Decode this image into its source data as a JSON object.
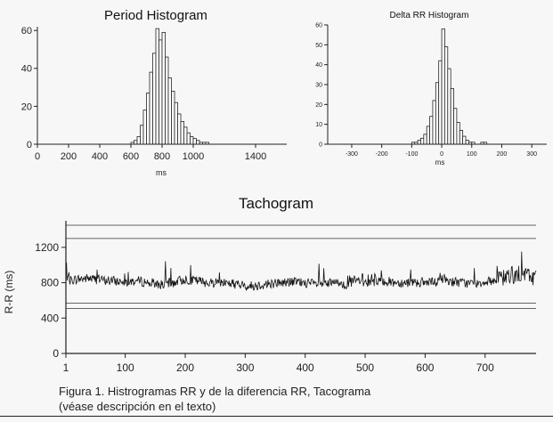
{
  "chart_data": [
    {
      "type": "bar",
      "title": "Period Histogram",
      "xlabel": "ms",
      "ylabel": "",
      "xlim": [
        0,
        1600
      ],
      "ylim": [
        0,
        62
      ],
      "xticks": [
        0,
        200,
        400,
        600,
        800,
        1000,
        1400
      ],
      "yticks": [
        0,
        20,
        40,
        60
      ],
      "bin_width": 20,
      "bins": [
        600,
        620,
        640,
        660,
        680,
        700,
        720,
        740,
        760,
        780,
        800,
        820,
        840,
        860,
        880,
        900,
        920,
        940,
        960,
        980,
        1000,
        1020,
        1040,
        1060,
        1080
      ],
      "values": [
        1,
        2,
        4,
        10,
        18,
        27,
        38,
        48,
        61,
        55,
        59,
        46,
        35,
        28,
        22,
        16,
        12,
        9,
        6,
        4,
        3,
        2,
        1,
        1,
        1
      ]
    },
    {
      "type": "bar",
      "title": "Delta RR Histogram",
      "xlabel": "ms",
      "ylabel": "",
      "xlim": [
        -380,
        350
      ],
      "ylim": [
        0,
        60
      ],
      "xticks": [
        -300,
        -200,
        -100,
        0,
        100,
        200,
        300
      ],
      "yticks": [
        0,
        10,
        20,
        30,
        40,
        50,
        60
      ],
      "bin_width": 10,
      "bins": [
        -110,
        -100,
        -90,
        -80,
        -70,
        -60,
        -50,
        -40,
        -30,
        -20,
        -10,
        0,
        10,
        20,
        30,
        40,
        50,
        60,
        70,
        80,
        90,
        100,
        110,
        120,
        130,
        140
      ],
      "values": [
        0,
        1,
        1,
        2,
        3,
        5,
        9,
        14,
        22,
        31,
        42,
        58,
        49,
        38,
        28,
        18,
        11,
        7,
        4,
        2,
        1,
        1,
        0,
        0,
        1,
        1
      ]
    },
    {
      "type": "line",
      "title": "Tachogram",
      "xlabel": "",
      "ylabel": "R-R (ms)",
      "xlim": [
        1,
        785
      ],
      "ylim": [
        0,
        1500
      ],
      "xticks": [
        1,
        100,
        200,
        300,
        400,
        500,
        600,
        700
      ],
      "yticks": [
        0,
        400,
        800,
        1200
      ],
      "reference_lines": [
        1450,
        1300,
        570,
        510
      ],
      "n_beats": 785,
      "x": [
        1,
        20,
        40,
        60,
        80,
        100,
        120,
        140,
        160,
        180,
        200,
        220,
        240,
        260,
        280,
        300,
        320,
        340,
        360,
        380,
        400,
        420,
        440,
        460,
        480,
        500,
        520,
        540,
        560,
        580,
        600,
        620,
        625,
        640,
        660,
        680,
        700,
        720,
        740,
        760,
        785
      ],
      "y": [
        820,
        840,
        850,
        830,
        820,
        810,
        820,
        800,
        780,
        800,
        840,
        820,
        800,
        810,
        790,
        760,
        770,
        790,
        800,
        810,
        800,
        780,
        790,
        800,
        810,
        830,
        830,
        810,
        800,
        810,
        800,
        800,
        860,
        820,
        800,
        790,
        810,
        830,
        880,
        900,
        860
      ]
    }
  ],
  "caption": {
    "line1": "Figura 1. Histrogramas RR y de la diferencia RR, Tacograma",
    "line2": "(véase descripción en el texto)"
  }
}
